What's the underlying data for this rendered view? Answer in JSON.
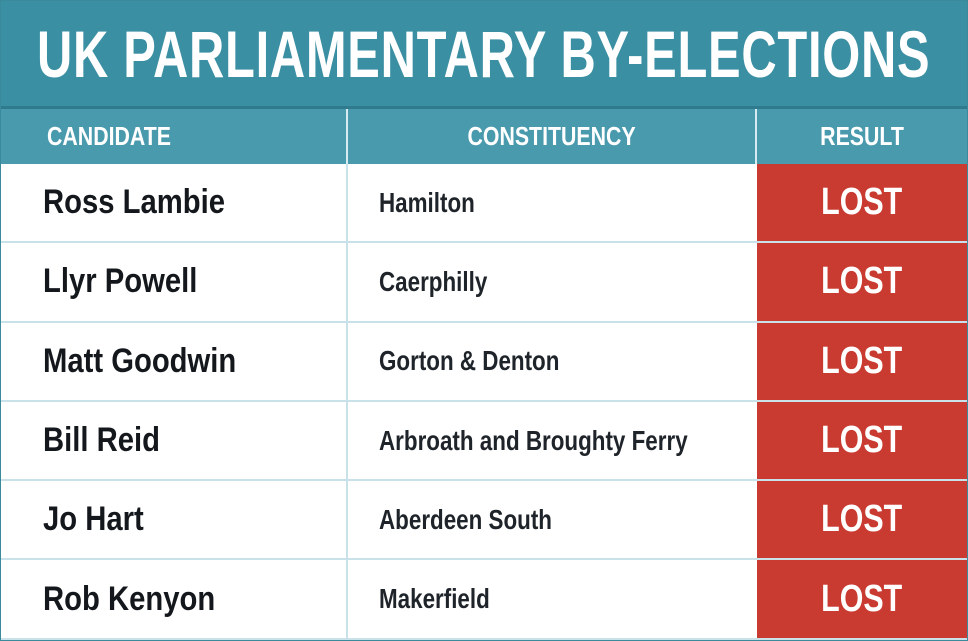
{
  "header": {
    "title": "UK PARLIAMENTARY BY-ELECTIONS"
  },
  "table": {
    "columns": [
      "CANDIDATE",
      "CONSTITUENCY",
      "RESULT"
    ],
    "rows": [
      [
        "Ross Lambie",
        "Hamilton",
        "LOST"
      ],
      [
        "Llyr Powell",
        "Caerphilly",
        "LOST"
      ],
      [
        "Matt Goodwin",
        "Gorton & Denton",
        "LOST"
      ],
      [
        "Bill Reid",
        "Arbroath and Broughty Ferry",
        "LOST"
      ],
      [
        "Jo Hart",
        "Aberdeen South",
        "LOST"
      ],
      [
        "Rob Kenyon",
        "Makerfield",
        "LOST"
      ]
    ]
  }
}
